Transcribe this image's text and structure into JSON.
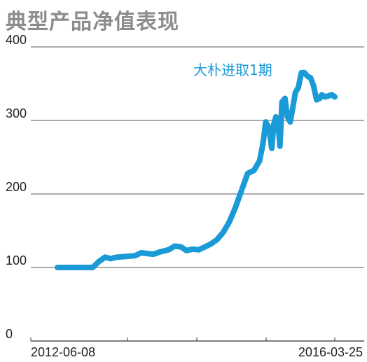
{
  "chart_data": {
    "type": "line",
    "title": "典型产品净值表现",
    "xlabel": "",
    "ylabel": "",
    "ylim": [
      0,
      400
    ],
    "y_ticks": [
      0,
      100,
      200,
      300,
      400
    ],
    "x_tick_labels": [
      "2012-06-08",
      "2016-03-25"
    ],
    "x_range": [
      "2012-06-08",
      "2016-03-25"
    ],
    "grid": "horizontal",
    "legend": "none",
    "line_color": "#1a9ad6",
    "series": [
      {
        "name": "大朴进取1期",
        "x": [
          "2012-06-08",
          "2012-08-01",
          "2012-10-01",
          "2012-11-15",
          "2012-12-01",
          "2013-01-01",
          "2013-02-01",
          "2013-03-01",
          "2013-04-01",
          "2013-05-15",
          "2013-07-01",
          "2013-08-01",
          "2013-09-01",
          "2013-10-01",
          "2013-11-01",
          "2013-12-15",
          "2014-01-15",
          "2014-02-15",
          "2014-03-15",
          "2014-04-15",
          "2014-05-15",
          "2014-06-15",
          "2014-07-15",
          "2014-08-15",
          "2014-09-15",
          "2014-10-15",
          "2014-11-15",
          "2014-12-15",
          "2015-01-15",
          "2015-02-15",
          "2015-03-15",
          "2015-04-01",
          "2015-04-15",
          "2015-05-01",
          "2015-05-15",
          "2015-05-25",
          "2015-06-05",
          "2015-06-15",
          "2015-06-25",
          "2015-07-05",
          "2015-07-20",
          "2015-08-01",
          "2015-08-15",
          "2015-08-25",
          "2015-09-10",
          "2015-09-25",
          "2015-10-10",
          "2015-10-25",
          "2015-11-10",
          "2015-11-25",
          "2015-12-10",
          "2015-12-25",
          "2016-01-10",
          "2016-01-20",
          "2016-02-05",
          "2016-02-20",
          "2016-03-10",
          "2016-03-25"
        ],
        "values": [
          100,
          100,
          100,
          100,
          100,
          108,
          114,
          112,
          114,
          115,
          116,
          120,
          119,
          118,
          121,
          124,
          129,
          128,
          123,
          125,
          124,
          128,
          132,
          138,
          148,
          162,
          182,
          205,
          228,
          232,
          245,
          268,
          298,
          290,
          262,
          295,
          305,
          298,
          265,
          325,
          330,
          305,
          298,
          312,
          338,
          345,
          365,
          365,
          360,
          358,
          347,
          328,
          330,
          335,
          332,
          333,
          335,
          332
        ]
      }
    ]
  }
}
